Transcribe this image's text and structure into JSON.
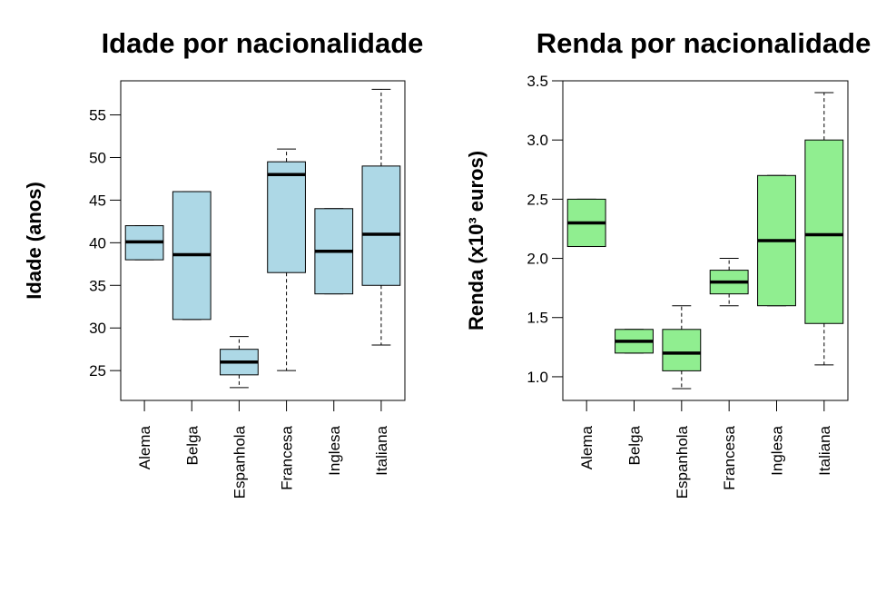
{
  "chart_data": [
    {
      "type": "boxplot",
      "title": "Idade por nacionalidade",
      "xlabel": "",
      "ylabel": "Idade (anos)",
      "ylim": [
        21.5,
        59
      ],
      "yticks": [
        25,
        30,
        35,
        40,
        45,
        50,
        55
      ],
      "box_color": "#add8e6",
      "categories": [
        "Alema",
        "Belga",
        "Espanhola",
        "Francesa",
        "Inglesa",
        "Italiana"
      ],
      "boxes": [
        {
          "whisker_low": 38,
          "q1": 38,
          "median": 40.1,
          "q3": 42,
          "whisker_high": 42
        },
        {
          "whisker_low": 31,
          "q1": 31,
          "median": 38.6,
          "q3": 46,
          "whisker_high": 46
        },
        {
          "whisker_low": 23,
          "q1": 24.5,
          "median": 26,
          "q3": 27.5,
          "whisker_high": 29
        },
        {
          "whisker_low": 25,
          "q1": 36.5,
          "median": 48,
          "q3": 49.5,
          "whisker_high": 51
        },
        {
          "whisker_low": 34,
          "q1": 34,
          "median": 39,
          "q3": 44,
          "whisker_high": 44
        },
        {
          "whisker_low": 28,
          "q1": 35,
          "median": 41,
          "q3": 49,
          "whisker_high": 58
        }
      ]
    },
    {
      "type": "boxplot",
      "title": "Renda por nacionalidade",
      "xlabel": "",
      "ylabel": "Renda (x10³ euros)",
      "ylim": [
        0.8,
        3.5
      ],
      "yticks": [
        "1.0",
        "1.5",
        "2.0",
        "2.5",
        "3.0",
        "3.5"
      ],
      "box_color": "#90ee90",
      "categories": [
        "Alema",
        "Belga",
        "Espanhola",
        "Francesa",
        "Inglesa",
        "Italiana"
      ],
      "boxes": [
        {
          "whisker_low": 2.1,
          "q1": 2.1,
          "median": 2.3,
          "q3": 2.5,
          "whisker_high": 2.5
        },
        {
          "whisker_low": 1.2,
          "q1": 1.2,
          "median": 1.3,
          "q3": 1.4,
          "whisker_high": 1.4
        },
        {
          "whisker_low": 0.9,
          "q1": 1.05,
          "median": 1.2,
          "q3": 1.4,
          "whisker_high": 1.6
        },
        {
          "whisker_low": 1.6,
          "q1": 1.7,
          "median": 1.8,
          "q3": 1.9,
          "whisker_high": 2.0
        },
        {
          "whisker_low": 1.6,
          "q1": 1.6,
          "median": 2.15,
          "q3": 2.7,
          "whisker_high": 2.7
        },
        {
          "whisker_low": 1.1,
          "q1": 1.45,
          "median": 2.2,
          "q3": 3.0,
          "whisker_high": 3.4
        }
      ]
    }
  ]
}
